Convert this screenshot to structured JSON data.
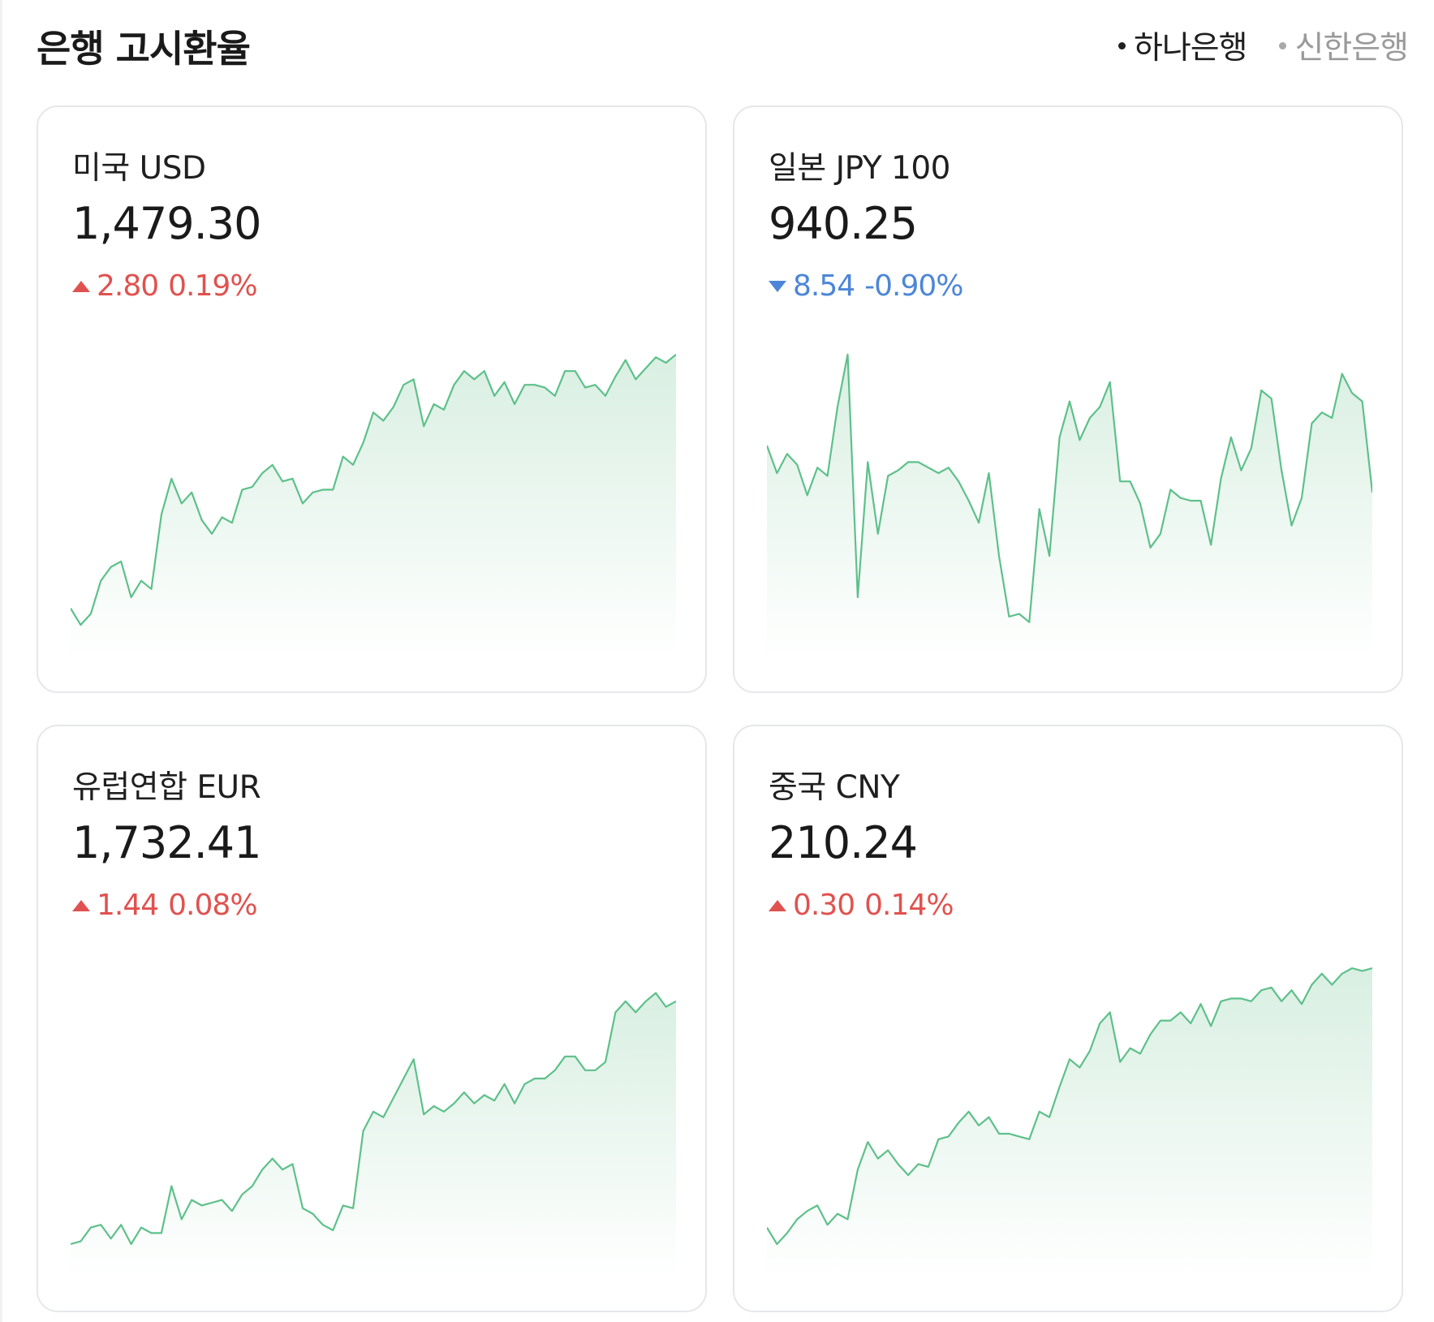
{
  "header": {
    "title": "은행 고시환율",
    "banks": [
      {
        "label": "하나은행",
        "active": true
      },
      {
        "label": "신한은행",
        "active": false
      }
    ]
  },
  "colors": {
    "up": "#e0524f",
    "down": "#4d86d8",
    "line": "#5ec08a",
    "fill_top": "#d9efe2"
  },
  "cards": [
    {
      "name": "미국 USD",
      "rate": "1,479.30",
      "direction": "up",
      "change": "2.80",
      "percent": "0.19%",
      "trend": [
        0.06,
        0,
        0.04,
        0.16,
        0.21,
        0.23,
        0.1,
        0.16,
        0.13,
        0.4,
        0.53,
        0.44,
        0.48,
        0.38,
        0.33,
        0.39,
        0.37,
        0.49,
        0.5,
        0.55,
        0.58,
        0.52,
        0.53,
        0.44,
        0.48,
        0.49,
        0.49,
        0.61,
        0.58,
        0.66,
        0.77,
        0.74,
        0.79,
        0.87,
        0.89,
        0.72,
        0.8,
        0.78,
        0.87,
        0.92,
        0.89,
        0.92,
        0.83,
        0.88,
        0.8,
        0.87,
        0.87,
        0.86,
        0.83,
        0.92,
        0.92,
        0.86,
        0.87,
        0.83,
        0.9,
        0.96,
        0.89,
        0.93,
        0.97,
        0.95,
        0.98
      ]
    },
    {
      "name": "일본 JPY 100",
      "rate": "940.25",
      "direction": "down",
      "change": "8.54",
      "percent": "-0.90%",
      "trend": [
        0.65,
        0.55,
        0.62,
        0.58,
        0.47,
        0.57,
        0.54,
        0.79,
        0.98,
        0.1,
        0.59,
        0.33,
        0.54,
        0.56,
        0.59,
        0.59,
        0.57,
        0.55,
        0.57,
        0.52,
        0.45,
        0.37,
        0.55,
        0.25,
        0.03,
        0.04,
        0.01,
        0.42,
        0.25,
        0.68,
        0.81,
        0.67,
        0.75,
        0.79,
        0.88,
        0.52,
        0.52,
        0.44,
        0.28,
        0.33,
        0.49,
        0.46,
        0.45,
        0.45,
        0.29,
        0.53,
        0.68,
        0.56,
        0.64,
        0.85,
        0.82,
        0.56,
        0.36,
        0.46,
        0.73,
        0.77,
        0.75,
        0.91,
        0.84,
        0.81,
        0.48
      ]
    },
    {
      "name": "유럽연합 EUR",
      "rate": "1,732.41",
      "direction": "up",
      "change": "1.44",
      "percent": "0.08%",
      "trend": [
        0,
        0.01,
        0.06,
        0.07,
        0.02,
        0.07,
        0,
        0.06,
        0.04,
        0.04,
        0.21,
        0.09,
        0.16,
        0.14,
        0.15,
        0.16,
        0.12,
        0.18,
        0.21,
        0.27,
        0.31,
        0.27,
        0.29,
        0.13,
        0.11,
        0.07,
        0.05,
        0.14,
        0.13,
        0.41,
        0.48,
        0.46,
        0.53,
        0.6,
        0.67,
        0.47,
        0.5,
        0.48,
        0.51,
        0.55,
        0.51,
        0.54,
        0.52,
        0.58,
        0.51,
        0.58,
        0.6,
        0.6,
        0.63,
        0.68,
        0.68,
        0.63,
        0.63,
        0.66,
        0.84,
        0.88,
        0.84,
        0.88,
        0.91,
        0.86,
        0.88
      ]
    },
    {
      "name": "중국 CNY",
      "rate": "210.24",
      "direction": "up",
      "change": "0.30",
      "percent": "0.14%",
      "trend": [
        0.06,
        0,
        0.04,
        0.09,
        0.12,
        0.14,
        0.07,
        0.11,
        0.09,
        0.27,
        0.37,
        0.31,
        0.34,
        0.29,
        0.25,
        0.29,
        0.28,
        0.38,
        0.39,
        0.44,
        0.48,
        0.43,
        0.46,
        0.4,
        0.4,
        0.39,
        0.38,
        0.48,
        0.46,
        0.57,
        0.67,
        0.64,
        0.7,
        0.8,
        0.84,
        0.66,
        0.71,
        0.69,
        0.76,
        0.81,
        0.81,
        0.84,
        0.8,
        0.87,
        0.79,
        0.88,
        0.89,
        0.89,
        0.88,
        0.92,
        0.93,
        0.88,
        0.92,
        0.87,
        0.94,
        0.98,
        0.94,
        0.98,
        1,
        0.99,
        1
      ]
    }
  ]
}
